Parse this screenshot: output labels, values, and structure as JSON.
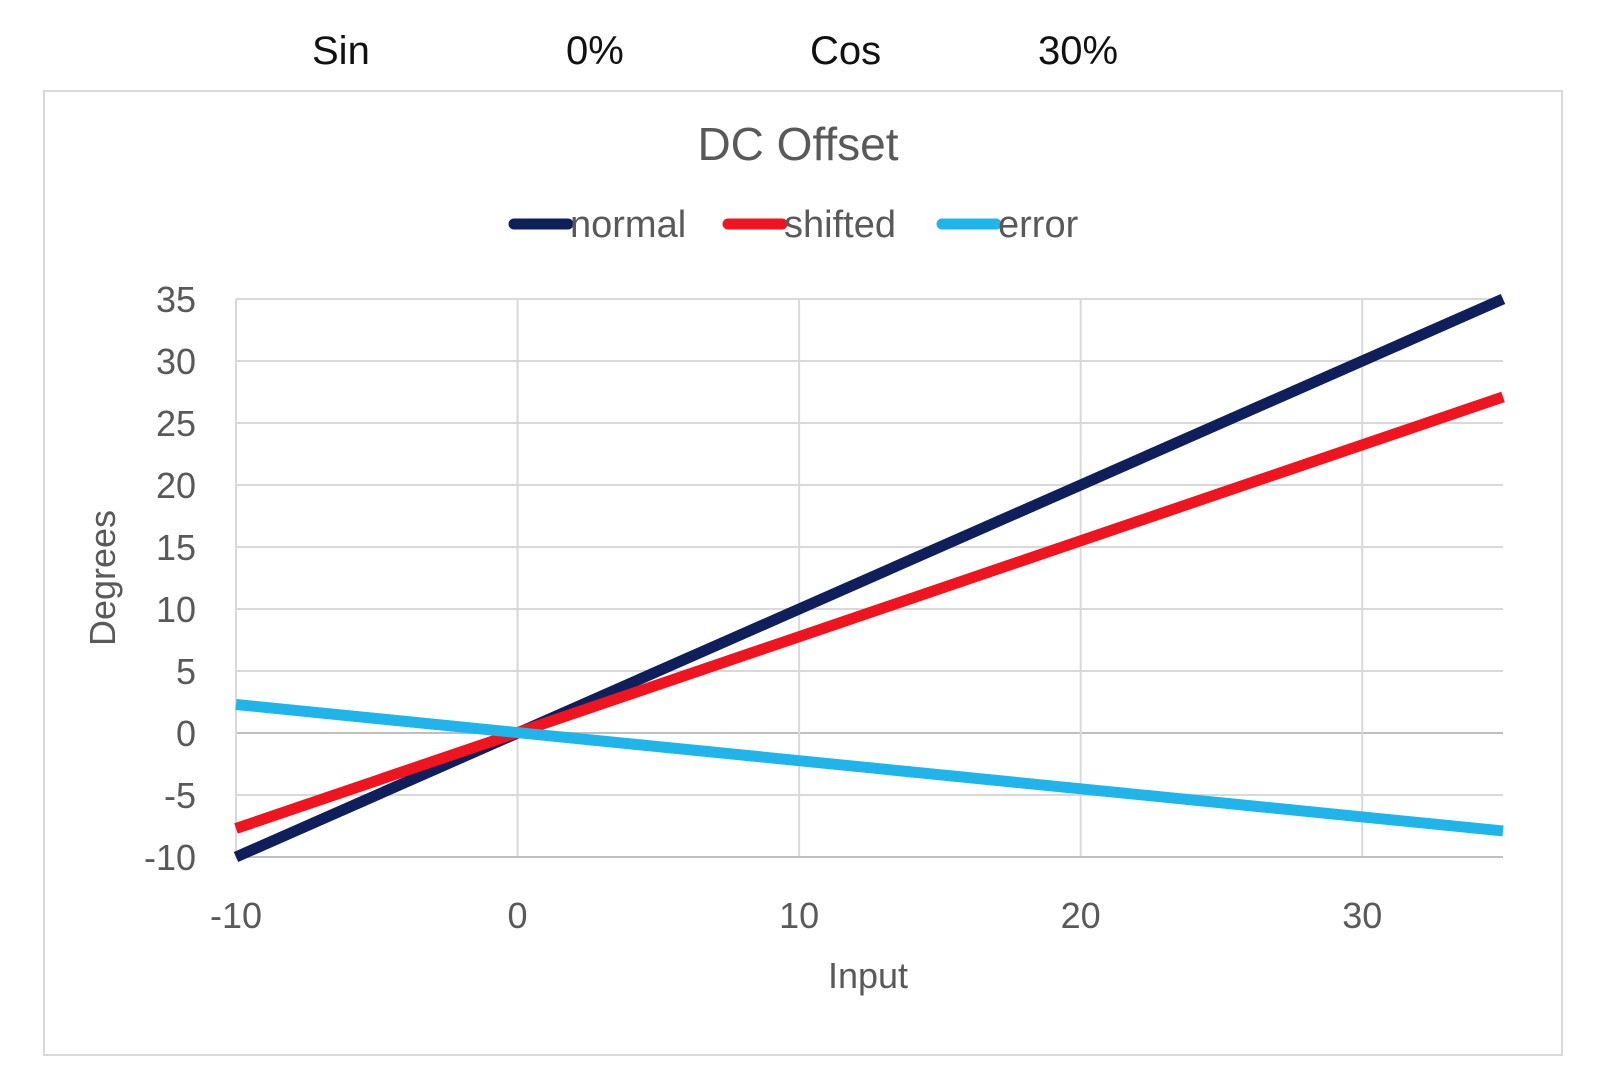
{
  "header": {
    "sin_label": "Sin",
    "sin_value": "0%",
    "cos_label": "Cos",
    "cos_value": "30%"
  },
  "chart_data": {
    "type": "line",
    "title": "DC Offset",
    "xlabel": "Input",
    "ylabel": "Degrees",
    "xlim": [
      -10,
      35
    ],
    "ylim": [
      -10,
      35
    ],
    "xticks": [
      -10,
      0,
      10,
      20,
      30
    ],
    "yticks": [
      35,
      30,
      25,
      20,
      15,
      10,
      5,
      0,
      -5,
      -10
    ],
    "grid": true,
    "legend_position": "top",
    "series": [
      {
        "name": "normal",
        "color": "#0e1f5b",
        "x": [
          -10,
          35
        ],
        "y": [
          -10,
          35
        ]
      },
      {
        "name": "shifted",
        "color": "#f0141e",
        "x": [
          -10,
          35
        ],
        "y": [
          -7.7,
          27.1
        ]
      },
      {
        "name": "error",
        "color": "#1fb4ea",
        "x": [
          -10,
          35
        ],
        "y": [
          2.3,
          -7.9
        ]
      }
    ]
  }
}
